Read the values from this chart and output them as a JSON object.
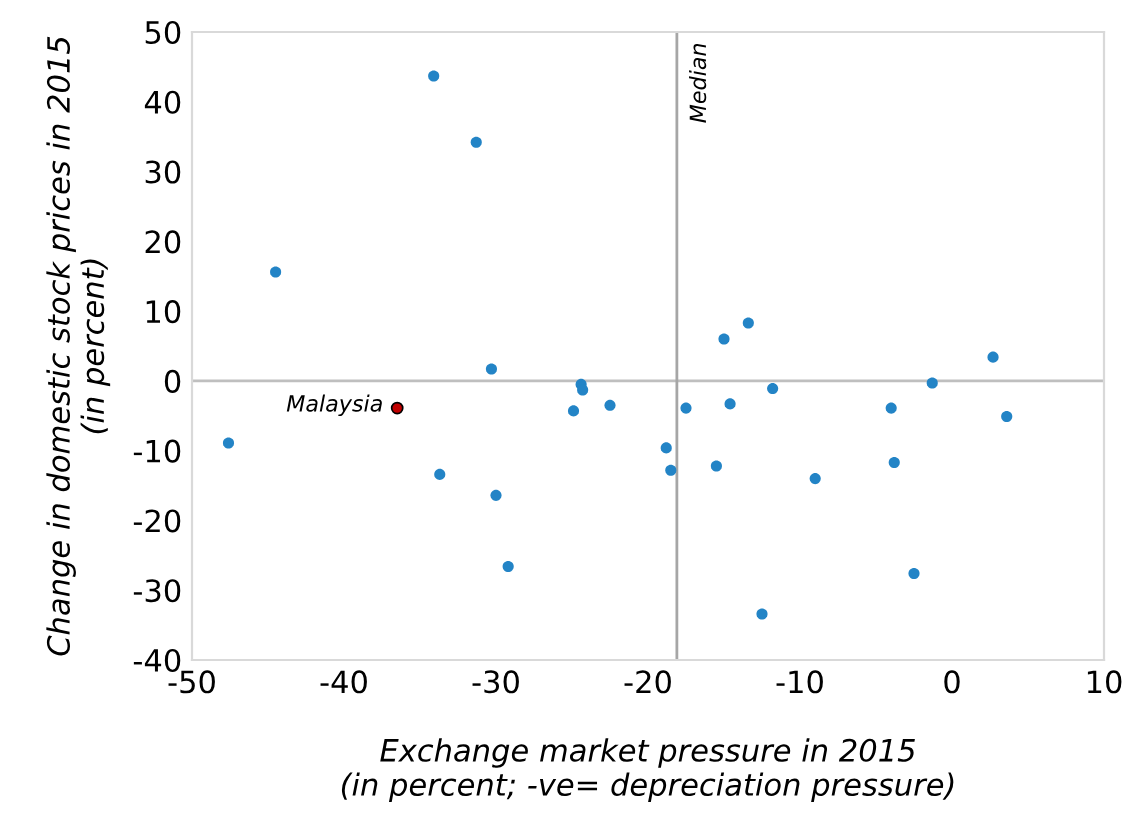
{
  "chart_data": {
    "type": "scatter",
    "xlabel": "Exchange market pressure in 2015\n(in percent; -ve= depreciation pressure)",
    "ylabel": "Change in domestic stock prices in 2015\n(in percent)",
    "xlim": [
      -50,
      10
    ],
    "xticks": [
      -50,
      -40,
      -30,
      -20,
      -10,
      0,
      10
    ],
    "ylim": [
      -40,
      50
    ],
    "yticks": [
      -40,
      -30,
      -20,
      -10,
      0,
      10,
      20,
      30,
      40,
      50
    ],
    "grid": false,
    "legend": false,
    "marker": "circle",
    "ref_lines": [
      {
        "axis": "y",
        "value": 0,
        "label": null,
        "color": "#bfbfbf"
      },
      {
        "axis": "x",
        "value": -18.1,
        "label": "Median",
        "color": "#a6a6a6"
      }
    ],
    "series": [
      {
        "color": "#2384c6",
        "x": [
          -34.1,
          -31.3,
          -44.5,
          -30.3,
          -47.6,
          -33.7,
          -30.0,
          -29.2,
          -24.9,
          -24.4,
          -24.3,
          -22.5,
          -18.8,
          -18.5,
          -17.5,
          -15.0,
          -13.4,
          -14.6,
          -15.5,
          -11.8,
          -9.0,
          -12.5,
          -4.0,
          -3.8,
          -1.3,
          -2.5,
          2.7,
          3.6
        ],
        "values": [
          43.7,
          34.2,
          15.6,
          1.7,
          -8.9,
          -13.4,
          -16.4,
          -26.6,
          -4.3,
          -0.5,
          -1.3,
          -3.5,
          -9.6,
          -12.8,
          -3.9,
          6.0,
          8.3,
          -3.3,
          -12.2,
          -1.1,
          -14.0,
          -33.4,
          -3.9,
          -11.7,
          -0.3,
          -27.6,
          3.4,
          -5.1
        ]
      },
      {
        "name": "Malaysia",
        "color": "#c00000",
        "x": [
          -36.5
        ],
        "values": [
          -3.9
        ]
      }
    ]
  }
}
